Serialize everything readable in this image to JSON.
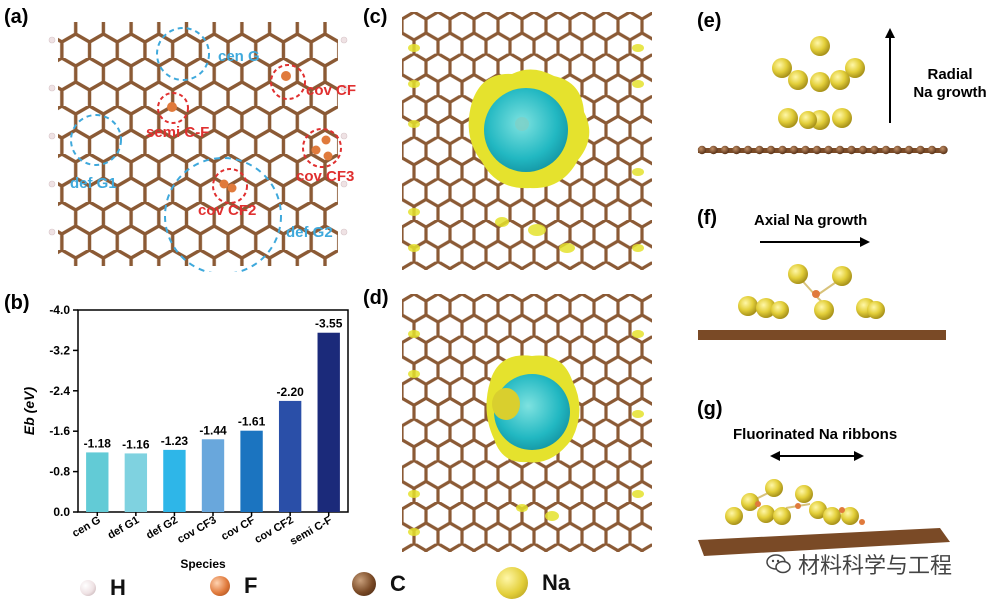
{
  "panels": {
    "a": "(a)",
    "b": "(b)",
    "c": "(c)",
    "d": "(d)",
    "e": "(e)",
    "f": "(f)",
    "g": "(g)"
  },
  "panel_a": {
    "labels": [
      "cen G",
      "cov CF",
      "semi C-F",
      "cov CF3",
      "def G1",
      "cov CF2",
      "def G2"
    ]
  },
  "panel_e": {
    "text_line1": "Radial",
    "text_line2": "Na growth"
  },
  "panel_f": {
    "text": "Axial Na growth"
  },
  "panel_g": {
    "text": "Fluorinated Na ribbons"
  },
  "legend": [
    {
      "label": "H",
      "color": "#f1e4e6"
    },
    {
      "label": "F",
      "color": "#e07a3c"
    },
    {
      "label": "C",
      "color": "#7a4a26"
    },
    {
      "label": "Na",
      "color": "#e8d530"
    }
  ],
  "watermark": "材料科学与工程",
  "colors": {
    "carbon": "#8b5a35",
    "na": "#e3cf3a",
    "f": "#e07a3c",
    "h": "#efe2e4",
    "isoYellow": "#e5e22d",
    "isoCyan": "#20c0c8",
    "blueDash": "#3fa9dc",
    "redDash": "#e03030"
  },
  "chart_data": {
    "type": "bar",
    "categories": [
      "cen G",
      "def G1",
      "def G2",
      "cov CF3",
      "cov CF",
      "cov CF2",
      "semi C-F"
    ],
    "values": [
      -1.18,
      -1.16,
      -1.23,
      -1.44,
      -1.61,
      -2.2,
      -3.55
    ],
    "value_labels": [
      "-1.18",
      "-1.16",
      "-1.23",
      "-1.44",
      "-1.61",
      "-2.20",
      "-3.55"
    ],
    "colors": [
      "#62cbd6",
      "#7fd2e0",
      "#2eb6e8",
      "#69a7dc",
      "#1b74c0",
      "#2a4fa8",
      "#1b2a7a"
    ],
    "xlabel": "Species",
    "ylabel": "Eb (eV)",
    "ylim": [
      0.0,
      -4.0
    ],
    "yticks": [
      "-4.0",
      "-3.2",
      "-2.4",
      "-1.6",
      "-0.8",
      "0.0"
    ]
  }
}
